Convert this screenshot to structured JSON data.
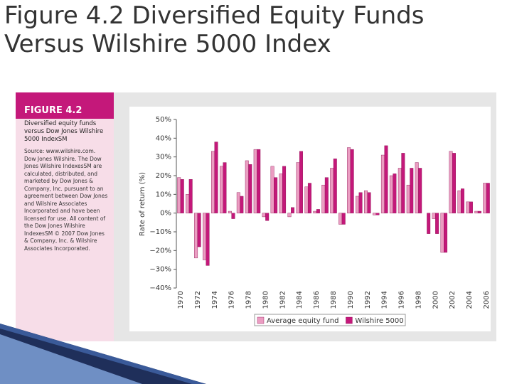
{
  "slide": {
    "title_lines": [
      "Figure 4.2 Diversified Equity Funds",
      "Versus Wilshire 5000 Index"
    ],
    "panel": {
      "heading": "FIGURE 4.2",
      "caption": "Diversified equity funds versus Dow Jones Wilshire 5000 IndexSM",
      "source": "Source: www.wilshire.com. Dow Jones Wilshire. The Dow Jones Wilshire IndexesSM are calculated, distributed, and marketed by Dow Jones & Company, Inc. pursuant to an agreement between Dow Jones and Wilshire Associates Incorporated and have been licensed for use. All content of the Dow Jones Wilshire IndexesSM © 2007 Dow Jones & Company, Inc. & Wilshire Associates Incorporated."
    }
  },
  "chart_data": {
    "type": "bar",
    "ylabel": "Rate of return (%)",
    "categories": [
      "1970",
      null,
      "1972",
      null,
      "1974",
      null,
      "1976",
      null,
      "1978",
      null,
      "1980",
      null,
      "1982",
      null,
      "1984",
      null,
      "1986",
      null,
      "1988",
      null,
      "1990",
      null,
      "1992",
      null,
      "1994",
      null,
      "1996",
      null,
      "1998",
      null,
      "2000",
      null,
      "2002",
      null,
      "2004",
      null,
      "2006"
    ],
    "series": [
      {
        "name": "Average equity fund",
        "color": "#eb9dc2",
        "values": [
          19,
          10,
          -24,
          -25,
          33,
          25,
          1,
          11,
          28,
          34,
          -2,
          25,
          21,
          -2,
          27,
          14,
          1,
          15,
          24,
          -6,
          35,
          9,
          12,
          -1,
          31,
          20,
          24,
          15,
          27,
          0,
          -3,
          -21,
          33,
          12,
          6,
          1,
          16
        ]
      },
      {
        "name": "Wilshire 5000",
        "color": "#c4187a",
        "values": [
          18,
          18,
          -18,
          -28,
          38,
          27,
          -3,
          9,
          26,
          34,
          -4,
          19,
          25,
          3,
          33,
          16,
          2,
          19,
          29,
          -6,
          34,
          11,
          11,
          -1,
          36,
          21,
          32,
          24,
          24,
          -11,
          -11,
          -21,
          32,
          13,
          6,
          1,
          16
        ]
      }
    ],
    "ylim": [
      -40,
      50
    ],
    "yticks": [
      {
        "value": -40,
        "label": "−40%"
      },
      {
        "value": -30,
        "label": "−30%"
      },
      {
        "value": -20,
        "label": "−20%"
      },
      {
        "value": -10,
        "label": "−10%"
      },
      {
        "value": 0,
        "label": "0%"
      },
      {
        "value": 10,
        "label": "10%"
      },
      {
        "value": 20,
        "label": "20%"
      },
      {
        "value": 30,
        "label": "30%"
      },
      {
        "value": 40,
        "label": "40%"
      },
      {
        "value": 50,
        "label": "50%"
      }
    ],
    "grid": false,
    "legend": "bottom"
  }
}
